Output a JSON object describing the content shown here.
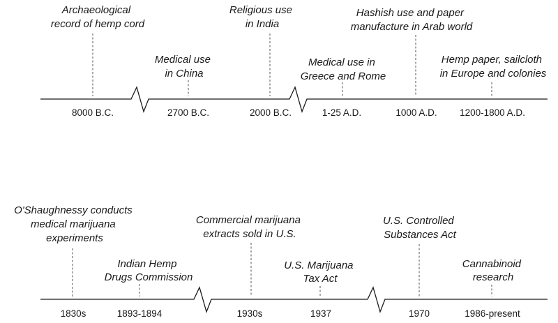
{
  "timelines": [
    {
      "events": [
        {
          "lines": [
            "Archaeological",
            "record of hemp cord"
          ],
          "date": "8000 B.C."
        },
        {
          "lines": [
            "Medical use",
            "in China"
          ],
          "date": "2700 B.C."
        },
        {
          "lines": [
            "Religious use",
            "in India"
          ],
          "date": "2000 B.C."
        },
        {
          "lines": [
            "Medical use in",
            "Greece and Rome"
          ],
          "date": "1-25 A.D."
        },
        {
          "lines": [
            "Hashish use and paper",
            "manufacture in Arab world"
          ],
          "date": "1000 A.D."
        },
        {
          "lines": [
            "Hemp paper, sailcloth",
            "in Europe and colonies"
          ],
          "date": "1200-1800 A.D."
        }
      ]
    },
    {
      "events": [
        {
          "lines": [
            "O'Shaughnessy conducts",
            "medical marijuana",
            "experiments"
          ],
          "date": "1830s"
        },
        {
          "lines": [
            "Indian Hemp",
            "Drugs Commission"
          ],
          "date": "1893-1894"
        },
        {
          "lines": [
            "Commercial marijuana",
            "extracts sold in U.S."
          ],
          "date": "1930s"
        },
        {
          "lines": [
            "U.S. Marijuana",
            "Tax Act"
          ],
          "date": "1937"
        },
        {
          "lines": [
            "U.S. Controlled",
            "Substances Act"
          ],
          "date": "1970"
        },
        {
          "lines": [
            "Cannabinoid",
            "research"
          ],
          "date": "1986-present"
        }
      ]
    }
  ]
}
